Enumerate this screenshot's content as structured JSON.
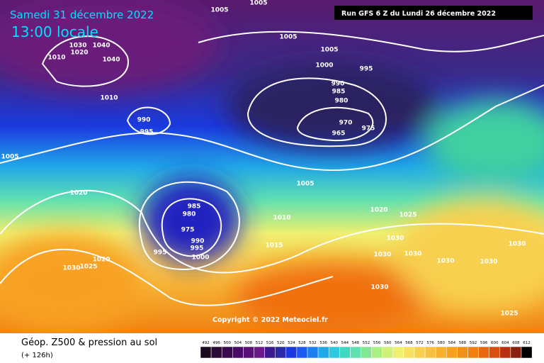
{
  "header": {
    "date": "Samedi 31 décembre 2022",
    "time": "13:00 locale",
    "run": "Run GFS 6 Z du Lundi 26 décembre 2022"
  },
  "copyright": "Copyright © 2022 Meteociel.fr",
  "footer": {
    "title": "Géop. Z500 & pression au sol",
    "lead": "(+ 126h)"
  },
  "scale": [
    492,
    496,
    500,
    504,
    508,
    512,
    516,
    520,
    524,
    528,
    532,
    536,
    540,
    544,
    548,
    552,
    556,
    560,
    564,
    568,
    572,
    576,
    580,
    584,
    588,
    592,
    596,
    600,
    604,
    608,
    612
  ],
  "isobars": [
    1005,
    1005,
    1005,
    1005,
    1000,
    995,
    990,
    985,
    980,
    970,
    975,
    965,
    1010,
    990,
    995,
    1005,
    1020,
    1005,
    985,
    980,
    975,
    990,
    995,
    995,
    1000,
    1010,
    1015,
    1020,
    1025,
    1030,
    1030,
    1030,
    1030,
    1030,
    1030,
    1030,
    1025,
    1020,
    1030,
    1025,
    1040,
    1040,
    1030,
    1020,
    1010
  ]
}
